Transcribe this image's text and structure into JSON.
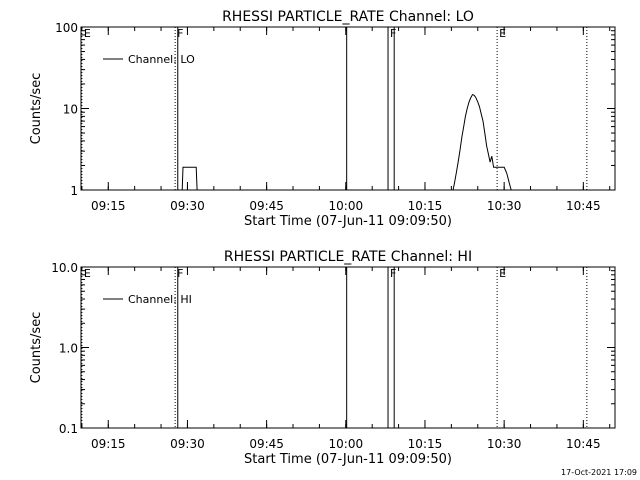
{
  "footer": {
    "timestamp": "17-Oct-2021 17:09"
  },
  "chart_data": [
    {
      "type": "line",
      "title": "RHESSI PARTICLE_RATE Channel: LO",
      "xlabel": "Start Time (07-Jun-11 09:09:50)",
      "ylabel": "Counts/sec",
      "yscale": "log",
      "xlim": [
        "09:09:50",
        "10:51:00"
      ],
      "ylim": [
        1,
        100
      ],
      "x_ticks": [
        "09:15",
        "09:30",
        "09:45",
        "10:00",
        "10:15",
        "10:30",
        "10:45"
      ],
      "y_ticks": [
        "1",
        "10",
        "100"
      ],
      "grid": false,
      "legend": {
        "position": "top-left",
        "entries": [
          "Channel: LO"
        ]
      },
      "markers": [
        {
          "time": "09:10:00",
          "style": "dotted",
          "label": "E"
        },
        {
          "time": "09:27:40",
          "style": "dotted",
          "label": "F"
        },
        {
          "time": "09:28:10",
          "style": "solid",
          "label": ""
        },
        {
          "time": "10:00:10",
          "style": "solid",
          "label": ""
        },
        {
          "time": "10:08:00",
          "style": "solid",
          "label": "F"
        },
        {
          "time": "10:09:10",
          "style": "solid",
          "label": ""
        },
        {
          "time": "10:28:40",
          "style": "dotted",
          "label": "E"
        },
        {
          "time": "10:45:40",
          "style": "dotted",
          "label": ""
        }
      ],
      "series": [
        {
          "segments": [
            {
              "x": [
                "09:28:30",
                "09:29:00",
                "09:29:10",
                "09:31:40",
                "09:31:50",
                "09:32:10"
              ],
              "y": [
                1.0,
                1.0,
                1.9,
                1.9,
                1.0,
                1.0
              ]
            },
            {
              "x": [
                "10:20:20",
                "10:20:40",
                "10:21:00",
                "10:21:20",
                "10:21:40",
                "10:22:00",
                "10:22:20",
                "10:22:40",
                "10:23:00",
                "10:23:20",
                "10:23:40",
                "10:24:00",
                "10:24:20",
                "10:24:40",
                "10:25:00",
                "10:25:20",
                "10:25:40",
                "10:26:00",
                "10:26:20",
                "10:26:40",
                "10:27:00",
                "10:27:20",
                "10:27:40",
                "10:28:00",
                "10:28:30",
                "10:29:00",
                "10:30:00",
                "10:30:30",
                "10:31:00",
                "10:31:20"
              ],
              "y": [
                1.0,
                1.3,
                1.7,
                2.3,
                3.2,
                4.5,
                6.0,
                8.0,
                10.0,
                12.0,
                13.5,
                14.8,
                14.5,
                13.5,
                12.0,
                10.5,
                8.5,
                7.0,
                5.0,
                3.5,
                2.8,
                2.2,
                2.6,
                1.9,
                1.9,
                1.9,
                1.9,
                1.6,
                1.2,
                1.0
              ]
            }
          ]
        }
      ]
    },
    {
      "type": "line",
      "title": "RHESSI PARTICLE_RATE Channel: HI",
      "xlabel": "Start Time (07-Jun-11 09:09:50)",
      "ylabel": "Counts/sec",
      "yscale": "log",
      "xlim": [
        "09:09:50",
        "10:51:00"
      ],
      "ylim": [
        0.1,
        10
      ],
      "x_ticks": [
        "09:15",
        "09:30",
        "09:45",
        "10:00",
        "10:15",
        "10:30",
        "10:45"
      ],
      "y_ticks": [
        "0.1",
        "1.0",
        "10.0"
      ],
      "grid": false,
      "legend": {
        "position": "top-left",
        "entries": [
          "Channel: HI"
        ]
      },
      "markers": [
        {
          "time": "09:10:00",
          "style": "dotted",
          "label": "E"
        },
        {
          "time": "09:27:40",
          "style": "dotted",
          "label": "F"
        },
        {
          "time": "09:28:10",
          "style": "solid",
          "label": ""
        },
        {
          "time": "10:00:10",
          "style": "solid",
          "label": ""
        },
        {
          "time": "10:08:00",
          "style": "solid",
          "label": "F"
        },
        {
          "time": "10:09:10",
          "style": "solid",
          "label": ""
        },
        {
          "time": "10:28:40",
          "style": "dotted",
          "label": "E"
        },
        {
          "time": "10:45:40",
          "style": "dotted",
          "label": ""
        }
      ],
      "series": []
    }
  ]
}
